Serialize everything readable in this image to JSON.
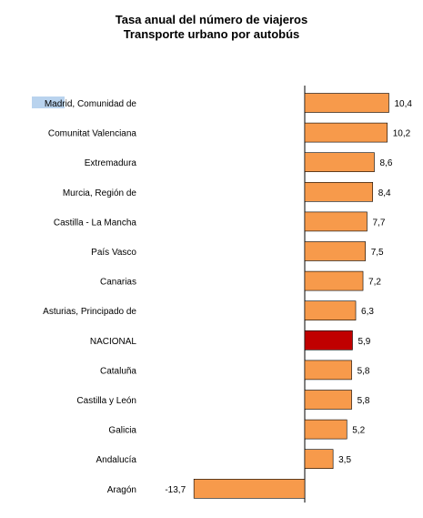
{
  "chart_data": {
    "type": "bar",
    "orientation": "horizontal",
    "title": [
      "Tasa anual del número de viajeros",
      "Transporte urbano por autobús"
    ],
    "categories": [
      "Madrid, Comunidad de",
      "Comunitat Valenciana",
      "Extremadura",
      "Murcia, Región de",
      "Castilla - La Mancha",
      "País Vasco",
      "Canarias",
      "Asturias, Principado de",
      "NACIONAL",
      "Cataluña",
      "Castilla y León",
      "Galicia",
      "Andalucía",
      "Aragón"
    ],
    "values": [
      10.4,
      10.2,
      8.6,
      8.4,
      7.7,
      7.5,
      7.2,
      6.3,
      5.9,
      5.8,
      5.8,
      5.2,
      3.5,
      -13.7
    ],
    "value_labels": [
      "10,4",
      "10,2",
      "8,6",
      "8,4",
      "7,7",
      "7,5",
      "7,2",
      "6,3",
      "5,9",
      "5,8",
      "5,8",
      "5,2",
      "3,5",
      "-13,7"
    ],
    "highlight_category": "NACIONAL",
    "colors": {
      "bar": "#F79A4B",
      "highlight": "#C00000",
      "bar_stroke": "#000000",
      "axis": "#000000",
      "text_highlight_bg": "#B9D3EE"
    },
    "highlighted_text": "Madrid",
    "xlim": [
      -13.7,
      10.4
    ],
    "grid": false,
    "legend": "none"
  }
}
